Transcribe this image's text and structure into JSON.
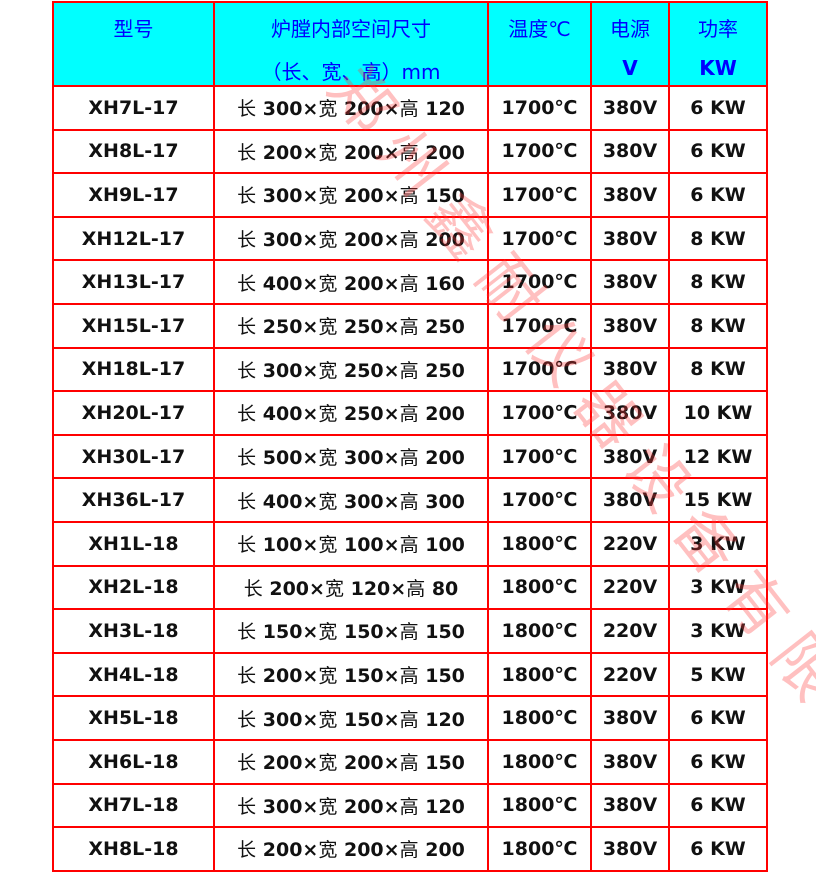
{
  "header": {
    "model": "型号",
    "size_line1": "炉膛内部空间尺寸",
    "size_line2": "（长、宽、高）mm",
    "temp": "温度℃",
    "voltage_line1": "电源",
    "voltage_line2": "V",
    "power_line1": "功率",
    "power_line2": "KW"
  },
  "size_labels": {
    "length": "长",
    "width": "宽",
    "height": "高",
    "times": "×"
  },
  "rows": [
    {
      "model": "XH7L-17",
      "l": "300",
      "w": "200",
      "h": "120",
      "temp": "1700℃",
      "v": "380V",
      "kw": "6 KW"
    },
    {
      "model": "XH8L-17",
      "l": "200",
      "w": "200",
      "h": "200",
      "temp": "1700℃",
      "v": "380V",
      "kw": "6 KW"
    },
    {
      "model": "XH9L-17",
      "l": "300",
      "w": "200",
      "h": "150",
      "temp": "1700℃",
      "v": "380V",
      "kw": "6 KW"
    },
    {
      "model": "XH12L-17",
      "l": "300",
      "w": "200",
      "h": "200",
      "temp": "1700℃",
      "v": "380V",
      "kw": "8 KW"
    },
    {
      "model": "XH13L-17",
      "l": "400",
      "w": "200",
      "h": "160",
      "temp": "1700℃",
      "v": "380V",
      "kw": "8 KW"
    },
    {
      "model": "XH15L-17",
      "l": "250",
      "w": "250",
      "h": "250",
      "temp": "1700℃",
      "v": "380V",
      "kw": "8 KW"
    },
    {
      "model": "XH18L-17",
      "l": "300",
      "w": "250",
      "h": "250",
      "temp": "1700℃",
      "v": "380V",
      "kw": "8 KW"
    },
    {
      "model": "XH20L-17",
      "l": "400",
      "w": "250",
      "h": "200",
      "temp": "1700℃",
      "v": "380V",
      "kw": "10 KW"
    },
    {
      "model": "XH30L-17",
      "l": "500",
      "w": "300",
      "h": "200",
      "temp": "1700℃",
      "v": "380V",
      "kw": "12 KW"
    },
    {
      "model": "XH36L-17",
      "l": "400",
      "w": "300",
      "h": "300",
      "temp": "1700℃",
      "v": "380V",
      "kw": "15 KW"
    },
    {
      "model": "XH1L-18",
      "l": "100",
      "w": "100",
      "h": "100",
      "temp": "1800℃",
      "v": "220V",
      "kw": "3 KW"
    },
    {
      "model": "XH2L-18",
      "l": "200",
      "w": "120",
      "h": "80",
      "temp": "1800℃",
      "v": "220V",
      "kw": "3 KW"
    },
    {
      "model": "XH3L-18",
      "l": "150",
      "w": "150",
      "h": "150",
      "temp": "1800℃",
      "v": "220V",
      "kw": "3 KW"
    },
    {
      "model": "XH4L-18",
      "l": "200",
      "w": "150",
      "h": "150",
      "temp": "1800℃",
      "v": "220V",
      "kw": "5 KW"
    },
    {
      "model": "XH5L-18",
      "l": "300",
      "w": "150",
      "h": "120",
      "temp": "1800℃",
      "v": "380V",
      "kw": "6 KW"
    },
    {
      "model": "XH6L-18",
      "l": "200",
      "w": "200",
      "h": "150",
      "temp": "1800℃",
      "v": "380V",
      "kw": "6 KW"
    },
    {
      "model": "XH7L-18",
      "l": "300",
      "w": "200",
      "h": "120",
      "temp": "1800℃",
      "v": "380V",
      "kw": "6 KW"
    },
    {
      "model": "XH8L-18",
      "l": "200",
      "w": "200",
      "h": "200",
      "temp": "1800℃",
      "v": "380V",
      "kw": "6 KW"
    }
  ],
  "watermark": "郑州鑫耐仪器设备有限公司",
  "colors": {
    "header_bg": "#00ffff",
    "header_text": "#0000ff",
    "border": "#ff0000",
    "watermark": "#ff3c3c"
  }
}
